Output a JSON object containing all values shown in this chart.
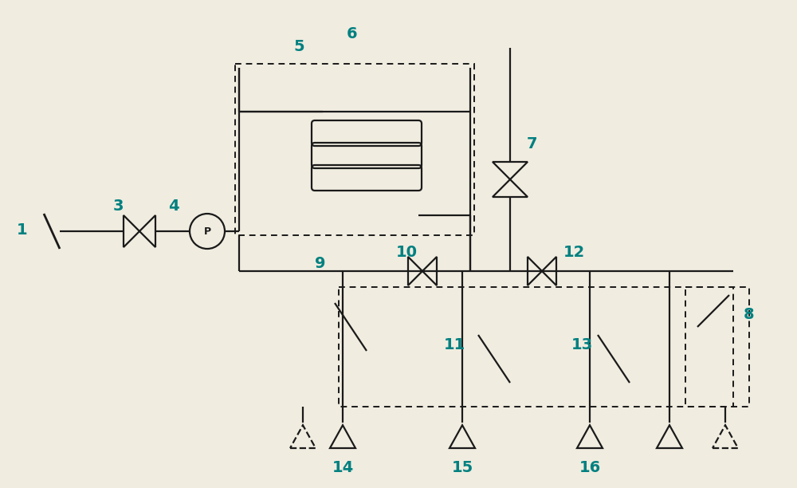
{
  "bg": "#f0ece0",
  "lc": "#1a1a1a",
  "label_color": "#008080",
  "fig_w": 10.0,
  "fig_h": 6.12,
  "lw": 1.6
}
